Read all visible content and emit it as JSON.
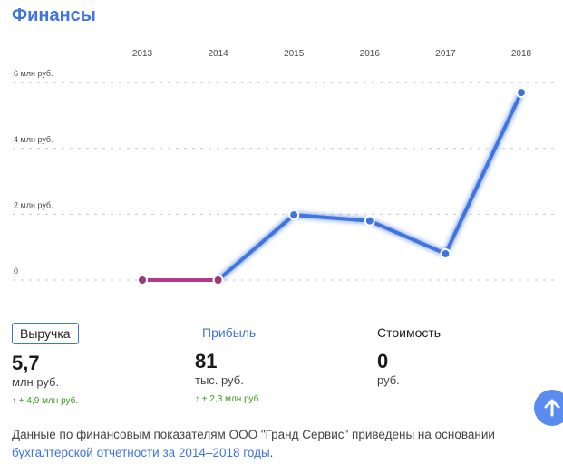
{
  "page": {
    "title": "Финансы"
  },
  "chart_data": {
    "type": "line",
    "categories": [
      "2013",
      "2014",
      "2015",
      "2016",
      "2017",
      "2018"
    ],
    "x_ticks": [
      "2013",
      "2014",
      "2015",
      "2016",
      "2017",
      "2018"
    ],
    "y_ticks": [
      {
        "value": 0,
        "label": "0"
      },
      {
        "value": 2,
        "label": "2 млн руб."
      },
      {
        "value": 4,
        "label": "4 млн руб."
      },
      {
        "value": 6,
        "label": "6 млн руб."
      }
    ],
    "ylim": [
      0,
      6
    ],
    "values": [
      0,
      0,
      1.98,
      1.8,
      0.8,
      5.7
    ],
    "unit": "млн руб.",
    "grid": true,
    "colors": {
      "line": "#3f74e0",
      "zero_segment": "#b5398a",
      "zero_point": "#9a3a74"
    }
  },
  "metrics": [
    {
      "label": "Выручка",
      "value": "5,7",
      "unit": "млн руб.",
      "delta": "↑ + 4,9 млн руб."
    },
    {
      "label": "Прибыль",
      "value": "81",
      "unit": "тыс. руб.",
      "delta": "↑ + 2,3 млн руб."
    },
    {
      "label": "Стоимость",
      "value": "0",
      "unit": "руб.",
      "delta": ""
    }
  ],
  "footer": {
    "text": "Данные по финансовым показателям ООО \"Гранд Сервис\" приведены на основании ",
    "link": "бухгалтерской отчетности за 2014–2018 годы",
    "end": "."
  },
  "icons": {
    "scroll_up": "arrow-up-icon"
  }
}
